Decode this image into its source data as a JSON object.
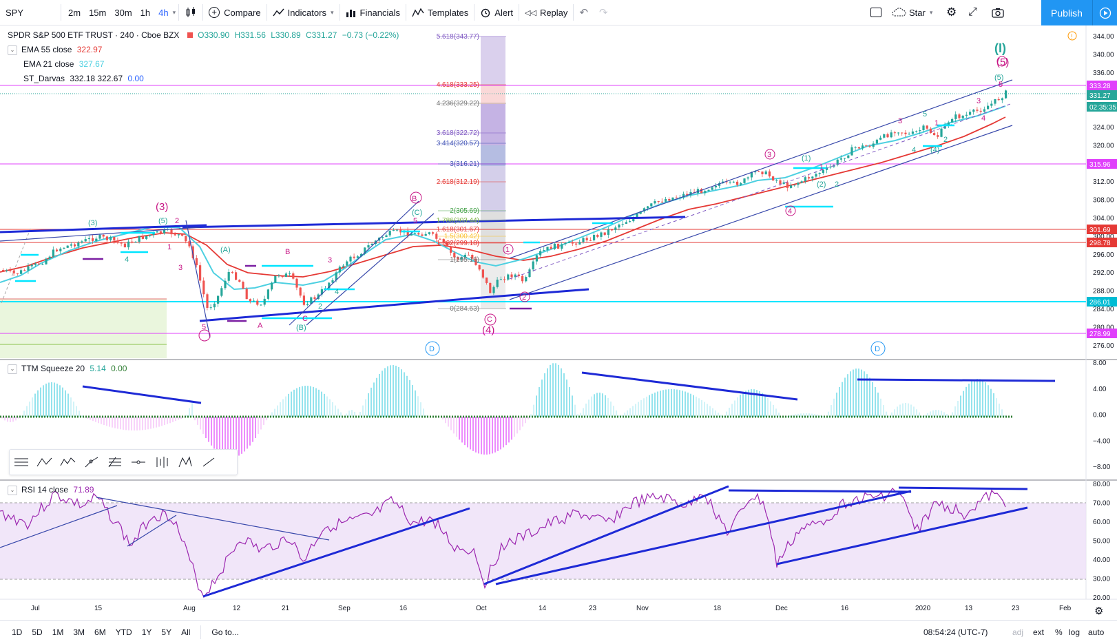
{
  "toolbar": {
    "symbol": "SPY",
    "timeframes": [
      "2m",
      "15m",
      "30m",
      "1h",
      "4h"
    ],
    "active_timeframe": "4h",
    "compare": "Compare",
    "indicators": "Indicators",
    "financials": "Financials",
    "templates": "Templates",
    "alert": "Alert",
    "replay": "Replay",
    "star": "Star",
    "publish": "Publish"
  },
  "legend": {
    "title": "SPDR S&P 500 ETF TRUST · 240 · Cboe BZX",
    "o": "O330.90",
    "h": "H331.56",
    "l": "L330.89",
    "c": "C331.27",
    "change": "−0.73 (−0.22%)",
    "ema55_label": "EMA 55 close",
    "ema55_val": "322.97",
    "ema21_label": "EMA 21 close",
    "ema21_val": "327.67",
    "darvas_label": "ST_Darvas",
    "darvas_vals": "332.18 322.67",
    "darvas_v3": "0.00"
  },
  "ttm": {
    "label": "TTM Squeeze 20",
    "v1": "5.14",
    "v2": "0.00"
  },
  "rsi": {
    "label": "RSI 14 close",
    "value": "71.89"
  },
  "price_axis": [
    "344.00",
    "340.00",
    "336.00",
    "332.00",
    "328.00",
    "324.00",
    "320.00",
    "316.00",
    "312.00",
    "308.00",
    "304.00",
    "300.00",
    "296.00",
    "292.00",
    "288.00",
    "284.00",
    "280.00",
    "276.00"
  ],
  "price_tags": [
    {
      "text": "333.28",
      "color": "#e040fb"
    },
    {
      "text": "331.27",
      "color": "#26a69a"
    },
    {
      "text": "02:35:35",
      "color": "#26a69a"
    },
    {
      "text": "315.96",
      "color": "#e040fb"
    },
    {
      "text": "301.69",
      "color": "#e53935"
    },
    {
      "text": "298.78",
      "color": "#e53935"
    },
    {
      "text": "286.01",
      "color": "#00bcd4"
    },
    {
      "text": "278.99",
      "color": "#e040fb"
    }
  ],
  "ttm_axis": [
    "8.00",
    "4.00",
    "0.00",
    "−4.00",
    "−8.00"
  ],
  "rsi_axis": [
    "80.00",
    "70.00",
    "60.00",
    "50.00",
    "40.00",
    "30.00",
    "20.00"
  ],
  "fib_levels": [
    "5.618(343.77)",
    "4.618(333.25)",
    "4.236(329.22)",
    "3.618(322.72)",
    "3.414(320.57)",
    "3(316.21)",
    "2.618(312.19)",
    "2(305.69)",
    "1.786(303.44)",
    "1.618(301.67)",
    "1.5(300.42)",
    "1.382(299.18)",
    "1(295.16)",
    "0(284.63)"
  ],
  "time_axis": [
    "Jul",
    "15",
    "Aug",
    "12",
    "21",
    "Sep",
    "16",
    "Oct",
    "14",
    "23",
    "Nov",
    "18",
    "Dec",
    "16",
    "2020",
    "13",
    "23",
    "Feb"
  ],
  "waves": {
    "w3_big": "(3)",
    "w4_big": "(4)",
    "w5_big": "(5)",
    "wI": "(I)",
    "labels": [
      "(3)",
      "(5)",
      "2",
      "1",
      "3",
      "4",
      "5",
      "A",
      "(A)",
      "B",
      "C",
      "(B)",
      "3",
      "4",
      "2",
      "B",
      "(C)",
      "5",
      "C",
      "1",
      "2",
      "3",
      "(1)",
      "1",
      "2",
      "(2)",
      "4",
      "3",
      "5",
      "1",
      "2",
      "4",
      "(4)",
      "3",
      "4",
      "5",
      "(5)"
    ],
    "d1": "D",
    "d2": "D"
  },
  "bottom": {
    "ranges": [
      "1D",
      "5D",
      "1M",
      "3M",
      "6M",
      "YTD",
      "1Y",
      "5Y",
      "All"
    ],
    "goto": "Go to...",
    "time": "08:54:24 (UTC-7)",
    "adj": "adj",
    "ext": "ext",
    "pct": "%",
    "log": "log",
    "auto": "auto"
  },
  "colors": {
    "accent": "#2196f3",
    "ema55": "#e53935",
    "ema21": "#4dd0e1",
    "up": "#26a69a",
    "down": "#ef5350",
    "trend": "#1e2ad6",
    "wave": "#c71585",
    "rsi": "#9c27b0"
  }
}
